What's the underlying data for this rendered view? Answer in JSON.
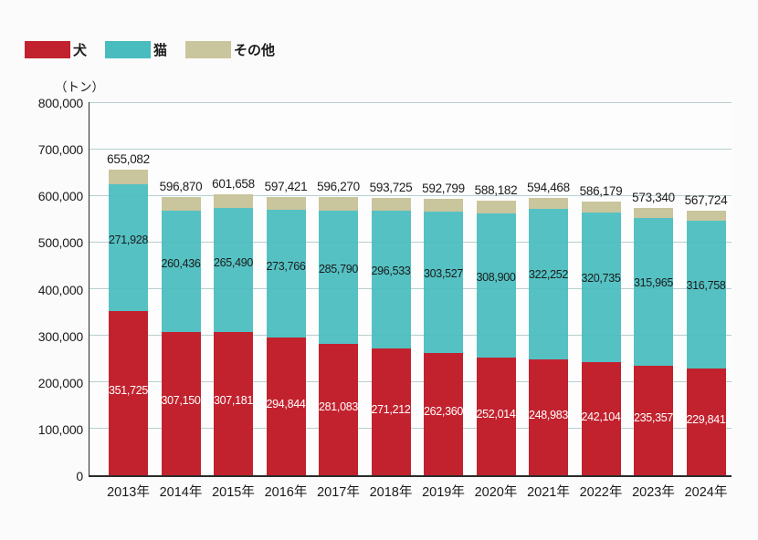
{
  "legend": {
    "items": [
      {
        "label": "犬",
        "color": "#c2222e"
      },
      {
        "label": "猫",
        "color": "#48bcbe"
      },
      {
        "label": "その他",
        "color": "#c9c59c"
      }
    ]
  },
  "unit_label": "（トン）",
  "chart_data": {
    "type": "bar",
    "stacked": true,
    "grid": true,
    "legend_position": "top-left",
    "ylabel": "（トン）",
    "ylim": [
      0,
      800000
    ],
    "ytick_step": 100000,
    "yticks": [
      "0",
      "100,000",
      "200,000",
      "300,000",
      "400,000",
      "500,000",
      "600,000",
      "700,000",
      "800,000"
    ],
    "categories": [
      "2013年",
      "2014年",
      "2015年",
      "2016年",
      "2017年",
      "2018年",
      "2019年",
      "2020年",
      "2021年",
      "2022年",
      "2023年",
      "2024年"
    ],
    "series": [
      {
        "name": "犬",
        "color": "#c2222e",
        "values": [
          351725,
          307150,
          307181,
          294844,
          281083,
          271212,
          262360,
          252014,
          248983,
          242104,
          235357,
          229841
        ],
        "labeled": true
      },
      {
        "name": "猫",
        "color": "#48bcbe",
        "values": [
          271928,
          260436,
          265490,
          273766,
          285790,
          296533,
          303527,
          308900,
          322252,
          320735,
          315965,
          316758
        ],
        "labeled": true
      },
      {
        "name": "その他",
        "color": "#c9c59c",
        "values": [
          31429,
          29284,
          28987,
          28811,
          29397,
          25980,
          26912,
          27268,
          23233,
          23340,
          22018,
          21125
        ],
        "labeled": false
      }
    ],
    "totals": [
      655082,
      596870,
      601658,
      597421,
      596270,
      593725,
      592799,
      588182,
      594468,
      586179,
      573340,
      567724
    ]
  }
}
